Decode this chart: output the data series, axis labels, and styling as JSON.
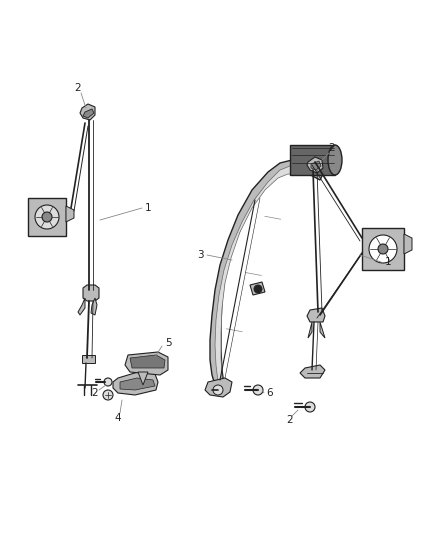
{
  "background_color": "#ffffff",
  "fig_width": 4.38,
  "fig_height": 5.33,
  "dpi": 100,
  "line_color": "#555555",
  "dark_color": "#222222",
  "gray_fill": "#bbbbbb",
  "light_fill": "#dddddd",
  "leader_color": "#888888"
}
